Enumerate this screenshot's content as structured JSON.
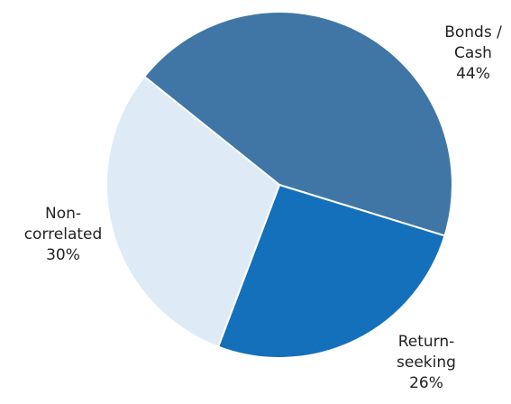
{
  "chart_data": {
    "type": "pie",
    "categories": [
      "Bonds / Cash",
      "Return-seeking",
      "Non-correlated"
    ],
    "values": [
      44,
      26,
      30
    ],
    "value_labels": [
      "44%",
      "26%",
      "30%"
    ],
    "colors": [
      "#4076a6",
      "#1470ba",
      "#deebf7"
    ]
  }
}
